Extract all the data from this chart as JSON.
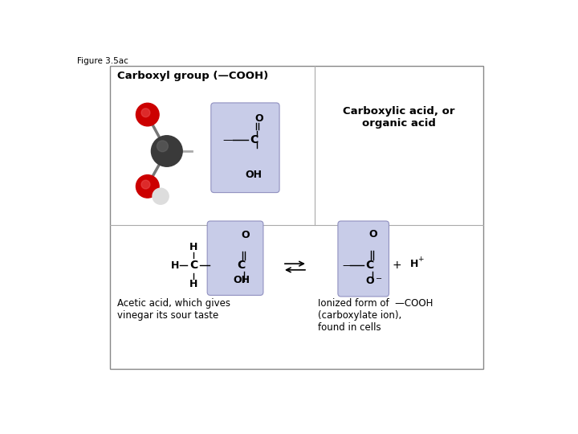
{
  "figure_label": "Figure 3.5ac",
  "bg_color": "#ffffff",
  "highlight_box_color": "#c8cce8",
  "title_top_left": "Carboxyl group (—COOH)",
  "title_top_right": "Carboxylic acid, or\norganic acid",
  "label_bottom_left": "Acetic acid, which gives\nvinegar its sour taste",
  "label_bottom_right": "Ionized form of  —COOH\n(carboxylate ion),\nfound in cells",
  "font_size_title": 9.5,
  "font_size_label": 8.5,
  "font_size_fig": 7.5,
  "font_size_chem": 9,
  "font_size_chem_small": 7
}
